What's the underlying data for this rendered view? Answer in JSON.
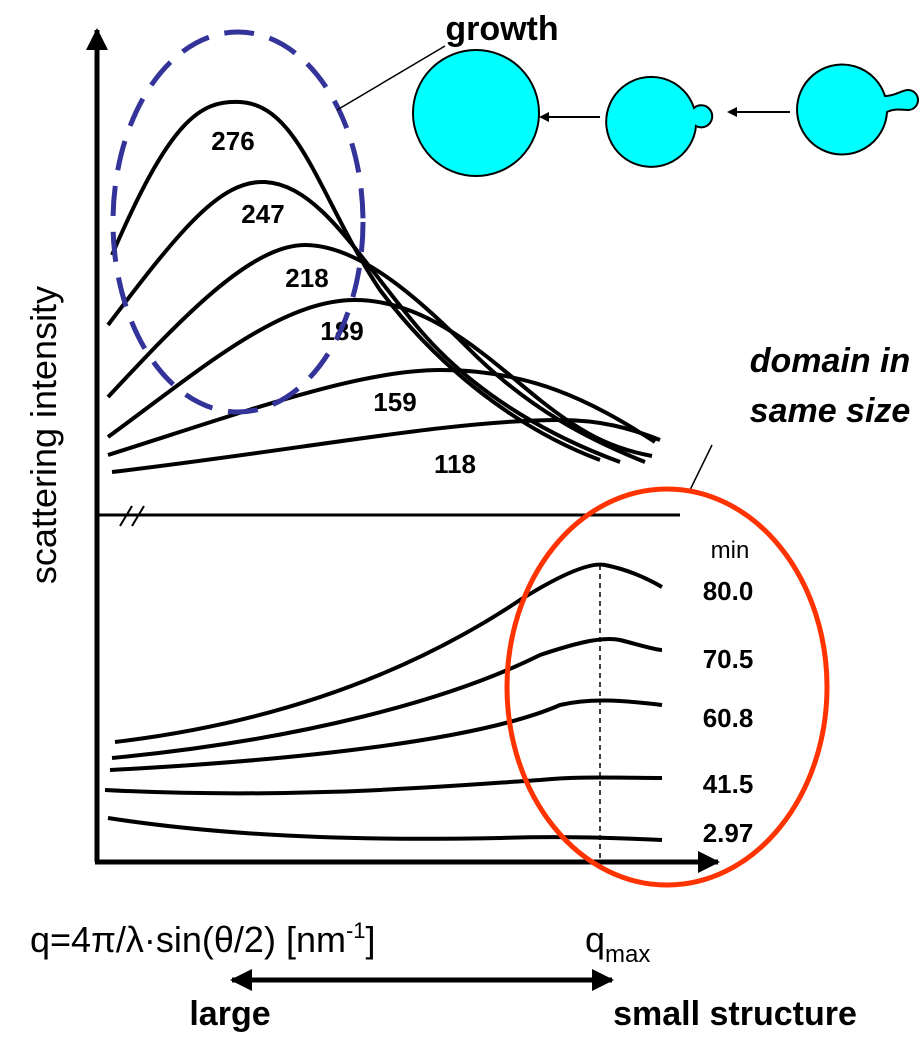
{
  "growth_label": "growth",
  "axes": {
    "y_label": "scattering intensity",
    "x_label": {
      "main": "q=4π/λ·sin(θ/2) [nm",
      "superscript": "-1",
      "close": "]"
    },
    "q_max": {
      "base": "q",
      "subscript": "max"
    }
  },
  "upper_curves": {
    "labels": [
      "276",
      "247",
      "218",
      "189",
      "159",
      "118"
    ]
  },
  "lower_curves": {
    "unit": "min",
    "labels": [
      "80.0",
      "70.5",
      "60.8",
      "41.5",
      "2.97"
    ]
  },
  "annotation": [
    "domain in",
    "same size"
  ],
  "size_arrow": {
    "left": "large",
    "right": "small structure"
  }
}
